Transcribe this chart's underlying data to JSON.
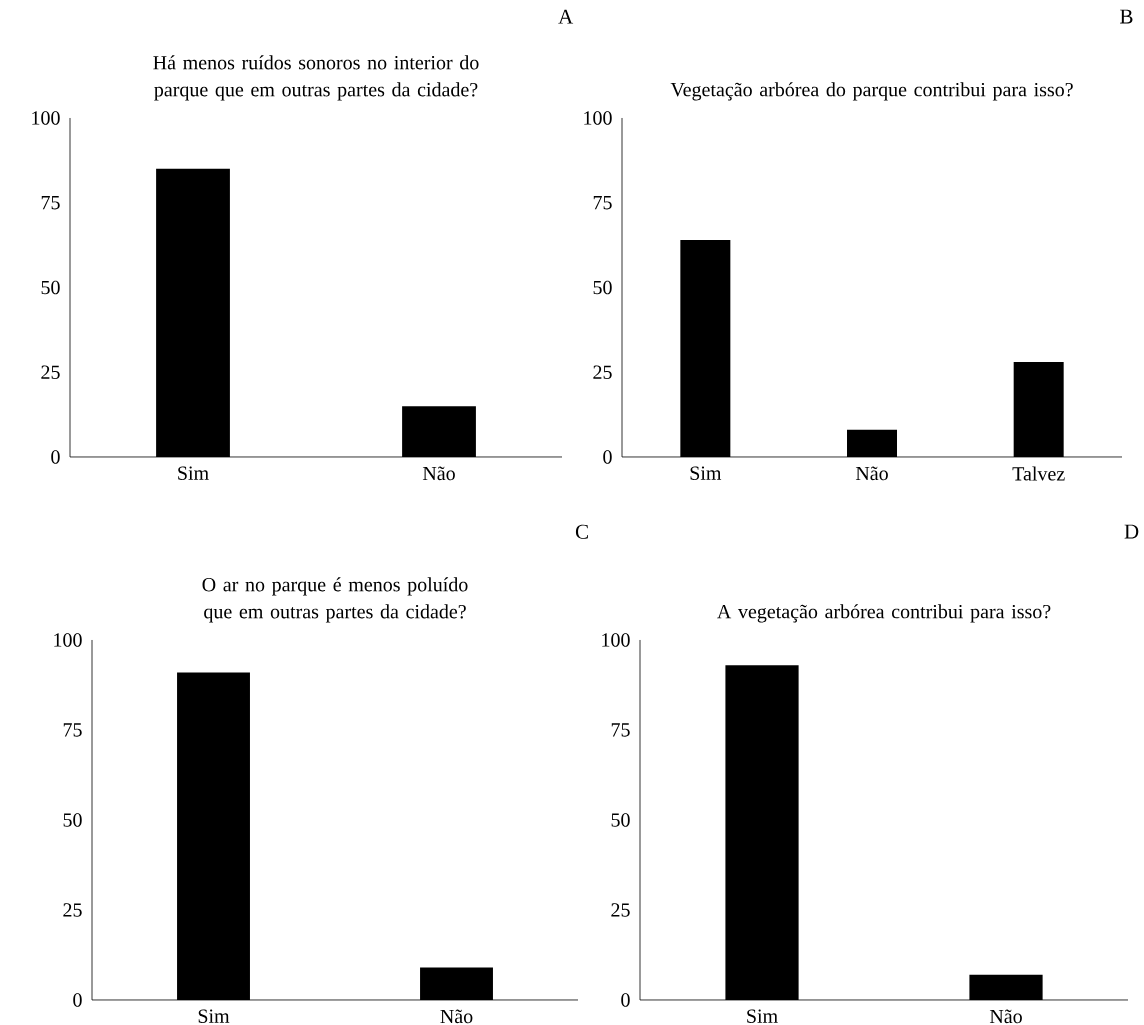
{
  "chart_data": [
    {
      "type": "bar",
      "title": "Há menos ruídos sonoros no interior do parque que em outras partes da cidade?",
      "categories": [
        "Sim",
        "Não"
      ],
      "values": [
        85,
        15
      ],
      "color": "#000000",
      "ylim": [
        0,
        100
      ],
      "yticks": [
        0,
        25,
        50,
        75,
        100
      ],
      "annotations": [
        "A"
      ]
    },
    {
      "type": "bar",
      "title": "Vegetação arbórea do parque contribui para isso?",
      "categories": [
        "Sim",
        "Não",
        "Talvez"
      ],
      "values": [
        64,
        8,
        28
      ],
      "color": "#000000",
      "ylim": [
        0,
        100
      ],
      "yticks": [
        0,
        25,
        50,
        75,
        100
      ],
      "annotations": [
        "B"
      ]
    },
    {
      "type": "bar",
      "title": "O ar no parque é menos poluído que em outras partes da cidade?",
      "categories": [
        "Sim",
        "Não"
      ],
      "values": [
        91,
        9
      ],
      "color": "#000000",
      "ylim": [
        0,
        100
      ],
      "yticks": [
        0,
        25,
        50,
        75,
        100
      ],
      "annotations": [
        "C"
      ]
    },
    {
      "type": "bar",
      "title": "A vegetação arbórea contribui para isso?",
      "categories": [
        "Sim",
        "Não"
      ],
      "values": [
        93,
        7
      ],
      "color": "#000000",
      "ylim": [
        0,
        100
      ],
      "yticks": [
        0,
        25,
        50,
        75,
        100
      ],
      "annotations": [
        "D"
      ]
    }
  ]
}
